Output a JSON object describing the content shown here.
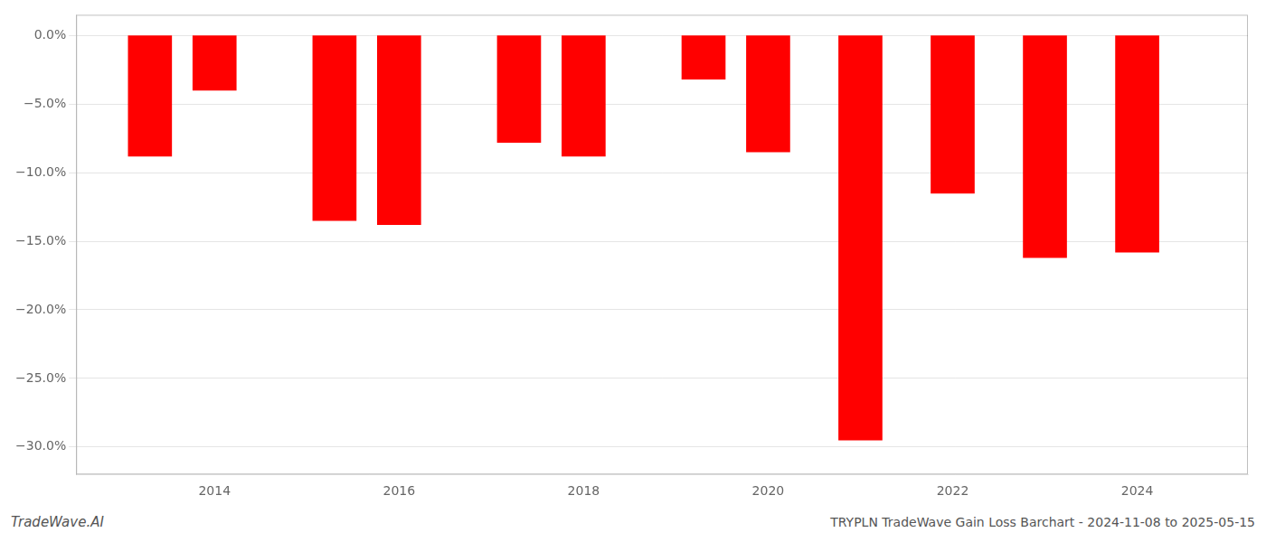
{
  "chart_data": {
    "type": "bar",
    "x": [
      2013.3,
      2014.0,
      2015.3,
      2016.0,
      2017.3,
      2018.0,
      2019.3,
      2020.0,
      2021.0,
      2022.0,
      2023.0,
      2024.0
    ],
    "values": [
      -8.8,
      -4.0,
      -13.5,
      -13.8,
      -7.8,
      -8.8,
      -3.2,
      -8.5,
      -29.5,
      -11.5,
      -16.2,
      -15.8
    ],
    "color": "#ff0000",
    "xlim": [
      2012.5,
      2025.2
    ],
    "xticks": [
      2014,
      2016,
      2018,
      2020,
      2022,
      2024
    ],
    "ylim": [
      -32,
      1.5
    ],
    "yticks": [
      {
        "value": 0.0,
        "label": "0.0%"
      },
      {
        "value": -5.0,
        "label": "−5.0%"
      },
      {
        "value": -10.0,
        "label": "−10.0%"
      },
      {
        "value": -15.0,
        "label": "−15.0%"
      },
      {
        "value": -20.0,
        "label": "−20.0%"
      },
      {
        "value": -25.0,
        "label": "−25.0%"
      },
      {
        "value": -30.0,
        "label": "−30.0%"
      }
    ],
    "grid": true,
    "annotations": [
      "TradeWave.AI",
      "TRYPLN TradeWave Gain Loss Barchart - 2024-11-08 to 2025-05-15"
    ]
  }
}
